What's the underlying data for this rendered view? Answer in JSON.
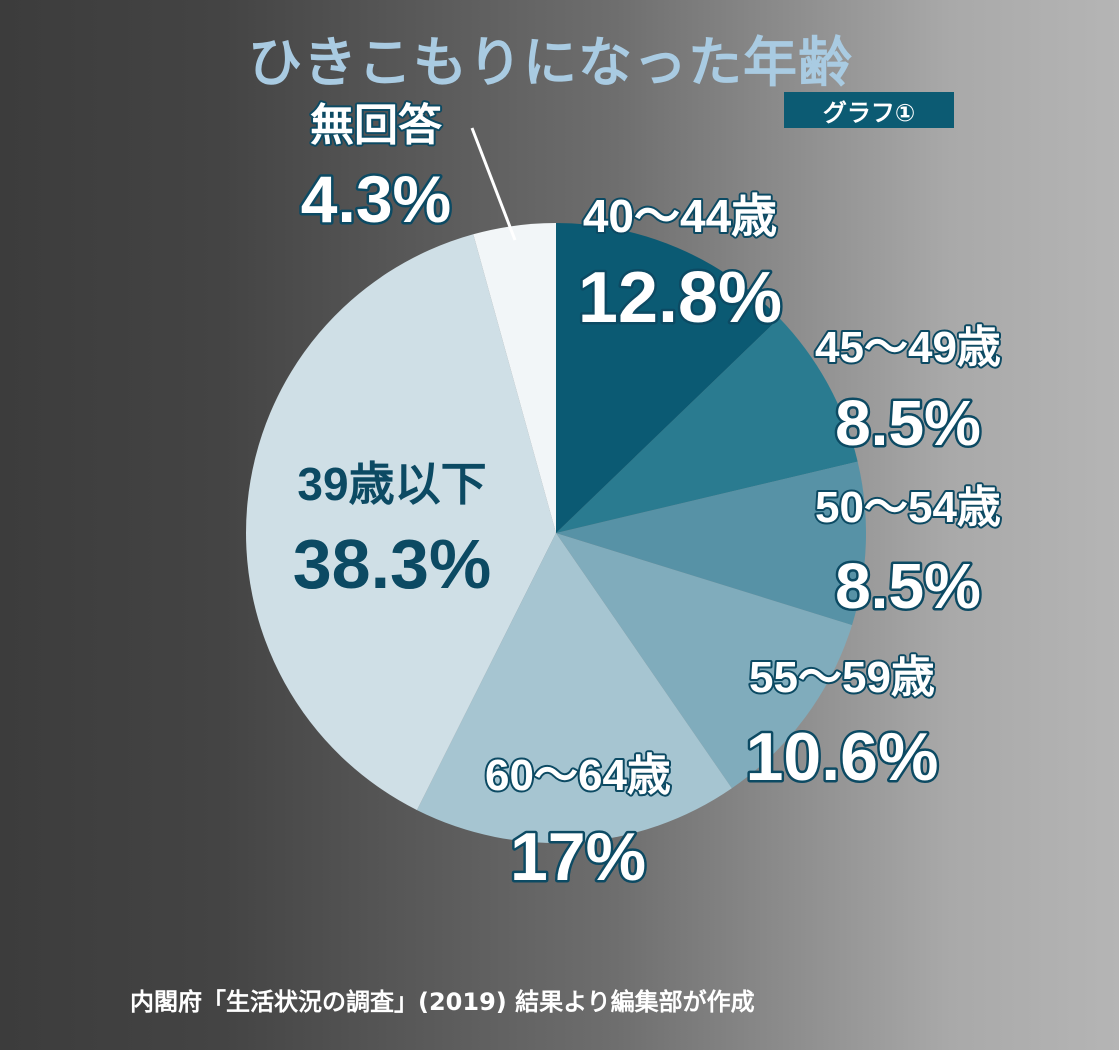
{
  "title": "ひきこもりになった年齢",
  "badge": "グラフ①",
  "source": "内閣府「生活状況の調査」(2019) 結果より編集部が作成",
  "colors": {
    "title": "#a9cbe2",
    "badge_bg": "#0c5b73",
    "label_dark": "#0c4a63"
  },
  "chart_data": {
    "type": "pie",
    "start": "12 o'clock",
    "direction": "clockwise",
    "slices": [
      {
        "label": "40〜44歳",
        "value": 12.8,
        "display": "12.8%",
        "color": "#0b5a73"
      },
      {
        "label": "45〜49歳",
        "value": 8.5,
        "display": "8.5%",
        "color": "#2a7b90"
      },
      {
        "label": "50〜54歳",
        "value": 8.5,
        "display": "8.5%",
        "color": "#5792a6"
      },
      {
        "label": "55〜59歳",
        "value": 10.6,
        "display": "10.6%",
        "color": "#80acbc"
      },
      {
        "label": "60〜64歳",
        "value": 17,
        "display": "17%",
        "color": "#a6c5d1"
      },
      {
        "label": "39歳以下",
        "value": 38.3,
        "display": "38.3%",
        "color": "#cfdfe6"
      },
      {
        "label": "無回答",
        "value": 4.3,
        "display": "4.3%",
        "color": "#f2f6f8"
      }
    ]
  }
}
